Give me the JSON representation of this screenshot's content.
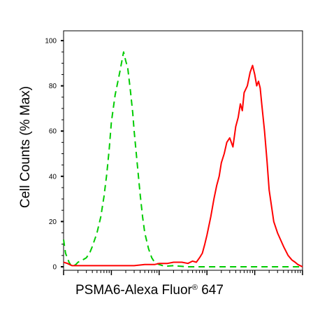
{
  "chart_data": {
    "type": "line",
    "title": "",
    "ylabel": "Cell Counts (% Max)",
    "xlabel": {
      "main": "PSMA6-Alexa Fluor",
      "superscript": "®",
      "suffix": " 647"
    },
    "x_scale": "log",
    "xlim": [
      1,
      100000
    ],
    "ylim": [
      0,
      100
    ],
    "y_ticks": [
      0,
      20,
      40,
      60,
      80,
      100
    ],
    "y_tick_labels": [
      "0",
      "20",
      "40",
      "60",
      "80",
      "100"
    ],
    "grid": false,
    "legend": "none",
    "series": [
      {
        "color": "#00cc00",
        "dash": "dashed",
        "x": [
          1,
          1.1,
          1.3,
          1.5,
          1.8,
          2.0,
          2.5,
          3.0,
          3.5,
          4.0,
          5.0,
          6.0,
          7.0,
          8.0,
          9.0,
          10,
          12,
          15,
          18,
          20,
          22,
          25,
          28,
          30,
          35,
          40,
          45,
          50,
          60,
          70,
          80,
          100,
          120,
          150,
          200,
          250,
          300,
          400,
          500,
          1000,
          10000,
          100000
        ],
        "y": [
          12,
          6,
          2,
          0,
          1,
          2,
          3,
          4,
          6,
          9,
          15,
          22,
          31,
          41,
          52,
          64,
          76,
          86,
          95,
          91,
          88,
          78,
          68,
          60,
          45,
          32,
          22,
          15,
          8,
          4,
          2,
          1,
          0.5,
          0.3,
          0.5,
          0.3,
          0.2,
          0,
          0,
          0,
          0,
          0
        ]
      },
      {
        "color": "#ff0000",
        "dash": "solid",
        "x": [
          1,
          1.2,
          1.5,
          2,
          3,
          5,
          10,
          20,
          30,
          50,
          80,
          100,
          150,
          200,
          300,
          400,
          500,
          600,
          700,
          800,
          900,
          1000,
          1200,
          1400,
          1600,
          1800,
          2000,
          2300,
          2600,
          3000,
          3500,
          4000,
          4500,
          5000,
          5500,
          6000,
          7000,
          8000,
          9000,
          10000,
          11000,
          12000,
          13000,
          14000,
          16000,
          18000,
          20000,
          25000,
          30000,
          40000,
          50000,
          60000,
          70000,
          80000,
          100000
        ],
        "y": [
          2,
          1.5,
          0.5,
          0.5,
          0.5,
          0.5,
          0.5,
          0.5,
          0.5,
          1,
          1,
          1.5,
          1.5,
          2,
          2,
          1.5,
          2.5,
          2,
          4,
          6,
          10,
          14,
          22,
          30,
          36,
          40,
          46,
          50,
          55,
          57,
          53,
          62,
          66,
          72,
          69,
          77,
          80,
          86,
          89,
          85,
          80,
          82,
          79,
          72,
          60,
          47,
          34,
          20,
          15,
          9,
          5,
          3,
          2,
          1,
          0
        ]
      }
    ]
  }
}
